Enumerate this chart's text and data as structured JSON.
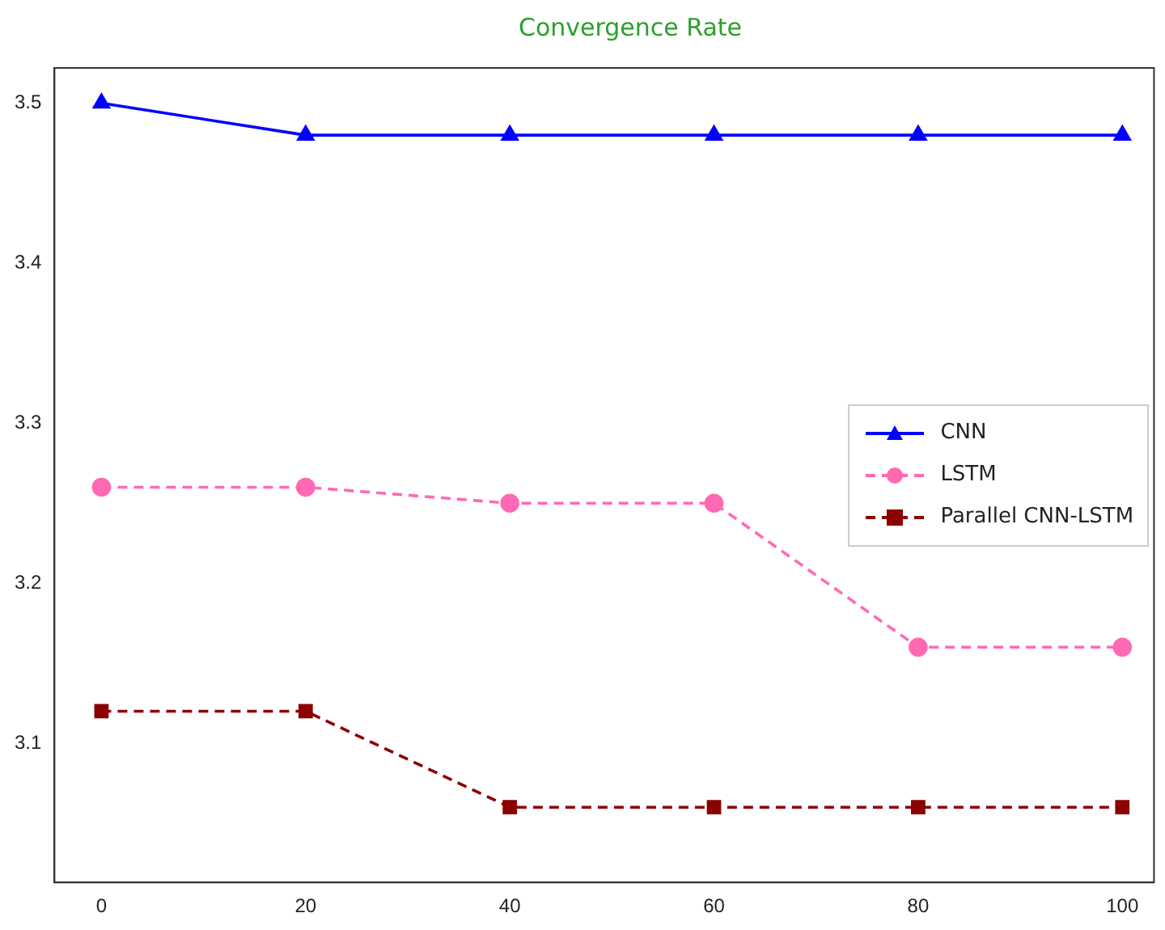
{
  "chart_data": {
    "type": "line",
    "title": "Convergence Rate",
    "x": [
      0,
      20,
      40,
      60,
      80,
      100
    ],
    "xlim": [
      -4.6,
      103.1
    ],
    "xticks": [
      0,
      20,
      40,
      60,
      80,
      100
    ],
    "ylim": [
      3.013,
      3.522
    ],
    "yticks": [
      3.1,
      3.2,
      3.3,
      3.4,
      3.5
    ],
    "grid": false,
    "legend": "center right",
    "series": [
      {
        "name": "CNN",
        "color": "#0000ff",
        "values": [
          3.5,
          3.48,
          3.48,
          3.48,
          3.48,
          3.48
        ],
        "marker": "triangle",
        "line_style": "solid"
      },
      {
        "name": "LSTM",
        "color": "#ff69b4",
        "values": [
          3.26,
          3.26,
          3.25,
          3.25,
          3.16,
          3.16
        ],
        "marker": "circle",
        "line_style": "dashed"
      },
      {
        "name": "Parallel CNN-LSTM",
        "color": "#8b0000",
        "values": [
          3.12,
          3.12,
          3.06,
          3.06,
          3.06,
          3.06
        ],
        "marker": "square",
        "line_style": "dashed"
      }
    ]
  }
}
